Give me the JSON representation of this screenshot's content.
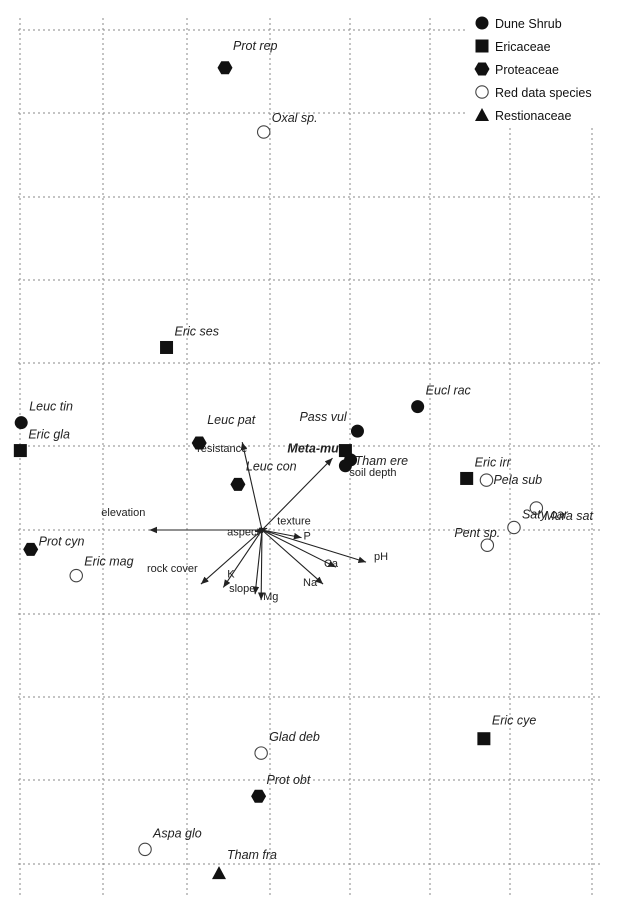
{
  "chart_data": {
    "type": "scatter",
    "subtype": "ordination biplot (species points with environmental vectors)",
    "grid": true,
    "legend_position": "top-right",
    "legend": [
      {
        "group": "dune",
        "label": "Dune Shrub",
        "marker": "filled-circle"
      },
      {
        "group": "eric",
        "label": "Ericaceae",
        "marker": "filled-square"
      },
      {
        "group": "prot",
        "label": "Proteaceae",
        "marker": "filled-hexagon"
      },
      {
        "group": "red",
        "label": "Red data species",
        "marker": "open-circle"
      },
      {
        "group": "rest",
        "label": "Restionaceae",
        "marker": "filled-triangle"
      }
    ],
    "species": [
      {
        "label": "Prot rep",
        "group": "prot",
        "x": -0.43,
        "y": 5.47
      },
      {
        "label": "Oxal sp.",
        "group": "red",
        "x": 0.02,
        "y": 4.71
      },
      {
        "label": "Eric ses",
        "group": "eric",
        "x": -1.11,
        "y": 2.16
      },
      {
        "label": "Leuc tin",
        "group": "dune",
        "x": -2.8,
        "y": 1.27
      },
      {
        "label": "Eric gla",
        "group": "eric",
        "x": -2.81,
        "y": 0.94
      },
      {
        "label": "Leuc pat",
        "group": "prot",
        "x": -0.73,
        "y": 1.03
      },
      {
        "label": "Leuc con",
        "group": "prot",
        "x": -0.28,
        "y": 0.54
      },
      {
        "label": "Pass vul",
        "group": "dune",
        "x": 1.11,
        "y": 1.17
      },
      {
        "label": "Tham ere",
        "group": "dune",
        "x": 1.03,
        "y": 0.83
      },
      {
        "label": "Meta-mu",
        "group": "eric",
        "x": 0.97,
        "y": 0.94
      },
      {
        "label": "Soil depth",
        "group": "dune",
        "x": 0.97,
        "y": 0.76
      },
      {
        "label": "Eucl rac",
        "group": "dune",
        "x": 1.81,
        "y": 1.46
      },
      {
        "label": "Eric irr",
        "group": "eric",
        "x": 2.38,
        "y": 0.61
      },
      {
        "label": "Pela sub",
        "group": "red",
        "x": 2.61,
        "y": 0.59
      },
      {
        "label": "Mura sat",
        "group": "red",
        "x": 3.19,
        "y": 0.26
      },
      {
        "label": "Saty car",
        "group": "red",
        "x": 2.93,
        "y": 0.03
      },
      {
        "label": "Pent sp.",
        "group": "red",
        "x": 2.62,
        "y": -0.18
      },
      {
        "label": "Prot cyn",
        "group": "prot",
        "x": -2.69,
        "y": -0.23
      },
      {
        "label": "Eric mag",
        "group": "red",
        "x": -2.16,
        "y": -0.54
      },
      {
        "label": "Eric cye",
        "group": "eric",
        "x": 2.58,
        "y": -2.47
      },
      {
        "label": "Glad deb",
        "group": "red",
        "x": -0.01,
        "y": -2.64
      },
      {
        "label": "Prot obt",
        "group": "prot",
        "x": -0.04,
        "y": -3.15
      },
      {
        "label": "Aspa glo",
        "group": "red",
        "x": -1.36,
        "y": -3.78
      },
      {
        "label": "Tham fra",
        "group": "rest",
        "x": -0.5,
        "y": -4.06
      }
    ],
    "env_vectors": [
      {
        "label": "elevation",
        "x": -1.31,
        "y": 0.0
      },
      {
        "label": "resistance",
        "x": -0.23,
        "y": 1.04
      },
      {
        "label": "texture",
        "x": 0.06,
        "y": 0.02
      },
      {
        "label": "P",
        "x": 0.46,
        "y": -0.09
      },
      {
        "label": "aspect",
        "x": -0.08,
        "y": -0.02
      },
      {
        "label": "pH",
        "x": 1.21,
        "y": -0.38
      },
      {
        "label": "Ca",
        "x": 0.86,
        "y": -0.44
      },
      {
        "label": "Na",
        "x": 0.71,
        "y": -0.64
      },
      {
        "label": "Mg",
        "x": -0.01,
        "y": -0.83
      },
      {
        "label": "slope",
        "x": -0.08,
        "y": -0.76
      },
      {
        "label": "K",
        "x": -0.45,
        "y": -0.68
      },
      {
        "label": "rock cover",
        "x": -0.71,
        "y": -0.64
      },
      {
        "label": "Meta-mu vec",
        "x": 0.82,
        "y": 0.85
      }
    ]
  }
}
